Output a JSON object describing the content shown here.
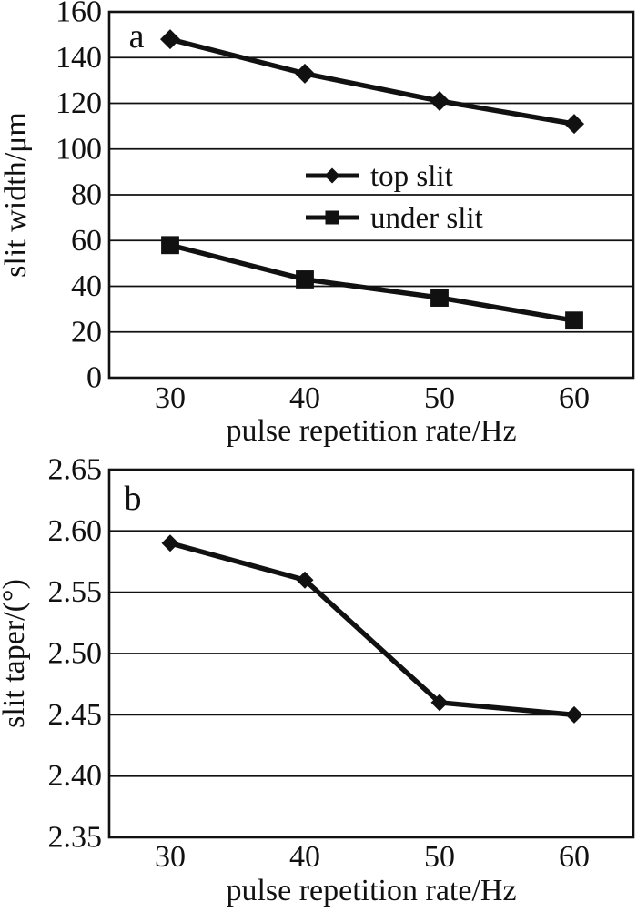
{
  "figure": {
    "background": "#ffffff",
    "ink_color": "#111111",
    "description": "Two stacked line charts of laser-cut slit geometry vs pulse repetition rate"
  },
  "chart_data": [
    {
      "type": "line",
      "panel_label": "a",
      "title": "",
      "xlabel": "pulse repetition rate/Hz",
      "ylabel": "slit width/μm",
      "categories": [
        "30",
        "40",
        "50",
        "60"
      ],
      "x_values": [
        30,
        40,
        50,
        60
      ],
      "series": [
        {
          "name": "top slit",
          "marker": "diamond",
          "values": [
            148,
            133,
            121,
            111
          ]
        },
        {
          "name": "under slit",
          "marker": "square",
          "values": [
            58,
            43,
            35,
            25
          ]
        }
      ],
      "ylim": [
        0,
        160
      ],
      "y_ticks": [
        "160",
        "140",
        "120",
        "100",
        "80",
        "60",
        "40",
        "20",
        "0"
      ],
      "grid": true,
      "legend_position": "inside upper-middle"
    },
    {
      "type": "line",
      "panel_label": "b",
      "title": "",
      "xlabel": "pulse repetition rate/Hz",
      "ylabel": "slit taper/(°)",
      "categories": [
        "30",
        "40",
        "50",
        "60"
      ],
      "x_values": [
        30,
        40,
        50,
        60
      ],
      "series": [
        {
          "name": "slit taper",
          "marker": "diamond",
          "values": [
            2.59,
            2.56,
            2.46,
            2.45
          ]
        }
      ],
      "ylim": [
        2.35,
        2.65
      ],
      "y_ticks": [
        "2.65",
        "2.60",
        "2.55",
        "2.50",
        "2.45",
        "2.40",
        "2.35"
      ],
      "grid": true,
      "legend_position": null
    }
  ]
}
